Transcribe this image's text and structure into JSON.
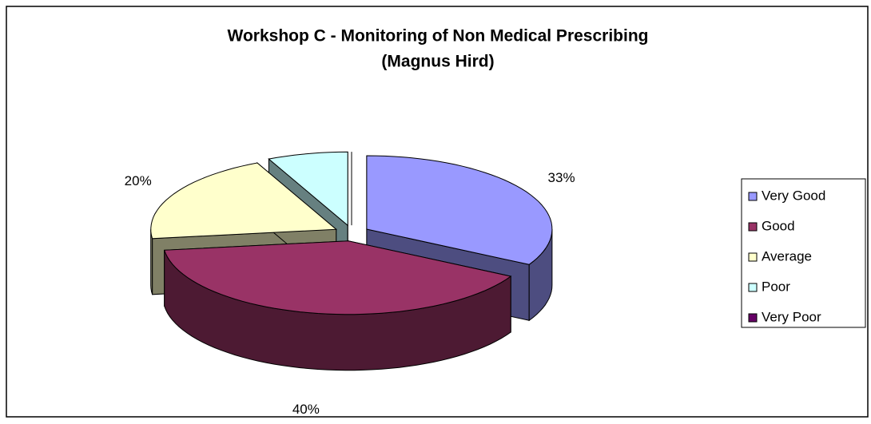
{
  "chart_data": {
    "type": "pie",
    "title": "Workshop C - Monitoring of Non Medical Prescribing",
    "subtitle": "(Magnus Hird)",
    "categories": [
      "Very Good",
      "Good",
      "Average",
      "Poor",
      "Very Poor"
    ],
    "values": [
      33,
      40,
      20,
      7,
      0
    ],
    "value_labels": [
      "33%",
      "40%",
      "20%",
      null,
      null
    ],
    "colors": [
      "#9999ff",
      "#993366",
      "#ffffcc",
      "#ccffff",
      "#660066"
    ],
    "legend": "right"
  }
}
